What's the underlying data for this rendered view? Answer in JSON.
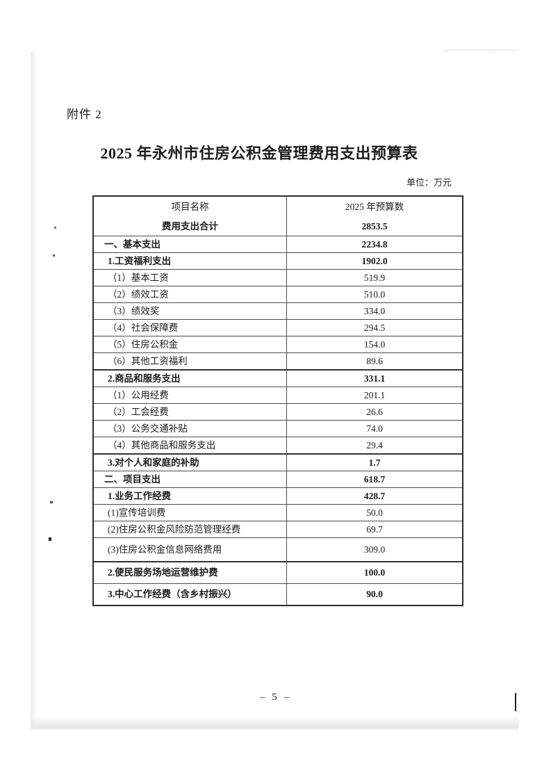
{
  "page": {
    "attachment_label": "附件 2",
    "title": "2025 年永州市住房公积金管理费用支出预算表",
    "unit_note": "单位：万元",
    "page_number": "– 5 –"
  },
  "table": {
    "columns": [
      "项目名称",
      "2025 年预算数"
    ],
    "rows": [
      {
        "label": "费用支出合计",
        "value": "2853.5",
        "bold": true,
        "center": true,
        "size": "mid"
      },
      {
        "label": "一、基本支出",
        "value": "2234.8",
        "bold": true,
        "indent": 0
      },
      {
        "label": "1.工资福利支出",
        "value": "1902.0",
        "bold": true,
        "indent": 1
      },
      {
        "label": "（1）基本工资",
        "value": "519.9",
        "bold": false,
        "indent": 1
      },
      {
        "label": "（2）绩效工资",
        "value": "510.0",
        "bold": false,
        "indent": 1
      },
      {
        "label": "（3）绩效奖",
        "value": "334.0",
        "bold": false,
        "indent": 1
      },
      {
        "label": "（4）社会保障费",
        "value": "294.5",
        "bold": false,
        "indent": 1
      },
      {
        "label": "（5）住房公积金",
        "value": "154.0",
        "bold": false,
        "indent": 1
      },
      {
        "label": "（6）其他工资福利",
        "value": "89.6",
        "bold": false,
        "indent": 1
      },
      {
        "label": "2.商品和服务支出",
        "value": "331.1",
        "bold": true,
        "indent": 1,
        "thick_top": true
      },
      {
        "label": "（1）公用经费",
        "value": "201.1",
        "bold": false,
        "indent": 1
      },
      {
        "label": "（2）工会经费",
        "value": "26.6",
        "bold": false,
        "indent": 1
      },
      {
        "label": "（3）公务交通补贴",
        "value": "74.0",
        "bold": false,
        "indent": 1
      },
      {
        "label": "（4）其他商品和服务支出",
        "value": "29.4",
        "bold": false,
        "indent": 1
      },
      {
        "label": "3.对个人和家庭的补助",
        "value": "1.7",
        "bold": true,
        "indent": 1,
        "thick_top": true
      },
      {
        "label": "二、项目支出",
        "value": "618.7",
        "bold": true,
        "indent": 0
      },
      {
        "label": "1.业务工作经费",
        "value": "428.7",
        "bold": true,
        "indent": 1
      },
      {
        "label": "(1)宣传培训费",
        "value": "50.0",
        "bold": false,
        "indent": 1
      },
      {
        "label": "(2)住房公积金风险防范管理经费",
        "value": "69.7",
        "bold": false,
        "indent": 1
      },
      {
        "label": "(3)住房公积金信息网络费用",
        "value": "309.0",
        "bold": false,
        "indent": 1,
        "size": "tall"
      },
      {
        "label": "2.便民服务场地运营维护费",
        "value": "100.0",
        "bold": true,
        "indent": 1,
        "thick_top": true,
        "size": "mid2"
      },
      {
        "label": "3.中心工作经费（含乡村振兴）",
        "value": "90.0",
        "bold": true,
        "indent": 1,
        "size": "mid2"
      }
    ]
  }
}
